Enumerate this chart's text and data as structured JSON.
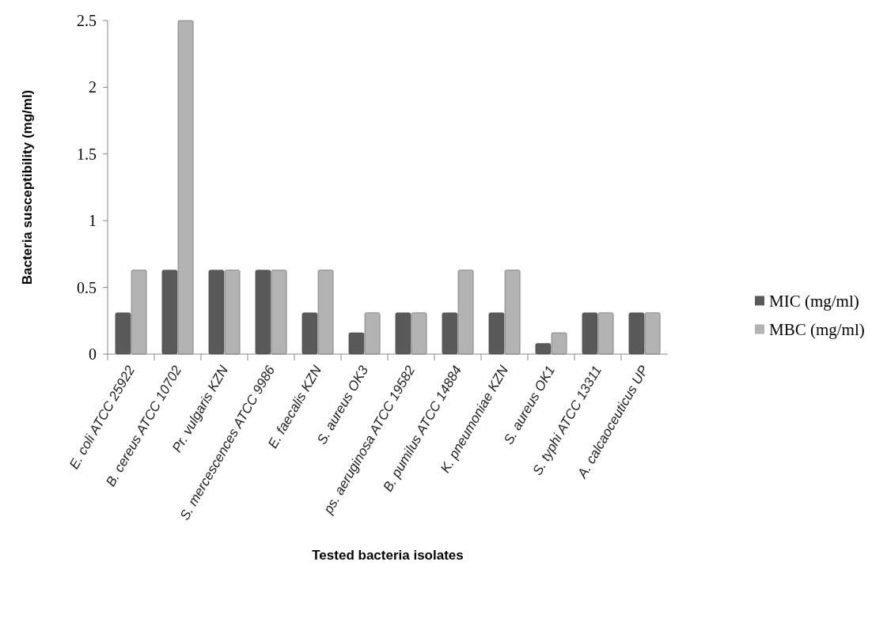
{
  "chart_data": {
    "type": "bar",
    "xlabel": "Tested bacteria isolates",
    "ylabel": "Bacteria susceptibility (mg/ml)",
    "categories": [
      "E. coli ATCC 25922",
      "B. cereus ATCC 10702",
      "Pr. vulgaris KZN",
      "S. mercescences ATCC 9986",
      "E. faecalis KZN",
      "S. aureus OK3",
      "ps. aeruginosa ATCC 19582",
      "B. pumilus ATCC 14884",
      "K. pneumoniae KZN",
      "S. aureus OK1",
      "S. typhi ATCC 13311",
      "A. calcaoceuticus UP"
    ],
    "series": [
      {
        "name": "MIC (mg/ml)",
        "color": "#595959",
        "values": [
          0.31,
          0.63,
          0.63,
          0.63,
          0.31,
          0.16,
          0.31,
          0.31,
          0.31,
          0.08,
          0.31,
          0.31
        ]
      },
      {
        "name": "MBC (mg/ml)",
        "color": "#b3b3b3",
        "values": [
          0.63,
          2.5,
          0.63,
          0.63,
          0.63,
          0.31,
          0.31,
          0.63,
          0.63,
          0.16,
          0.31,
          0.31
        ]
      }
    ],
    "ylim": [
      0,
      2.5
    ],
    "yticks": [
      0,
      0.5,
      1,
      1.5,
      2,
      2.5
    ],
    "grid": false,
    "legend": "right"
  }
}
